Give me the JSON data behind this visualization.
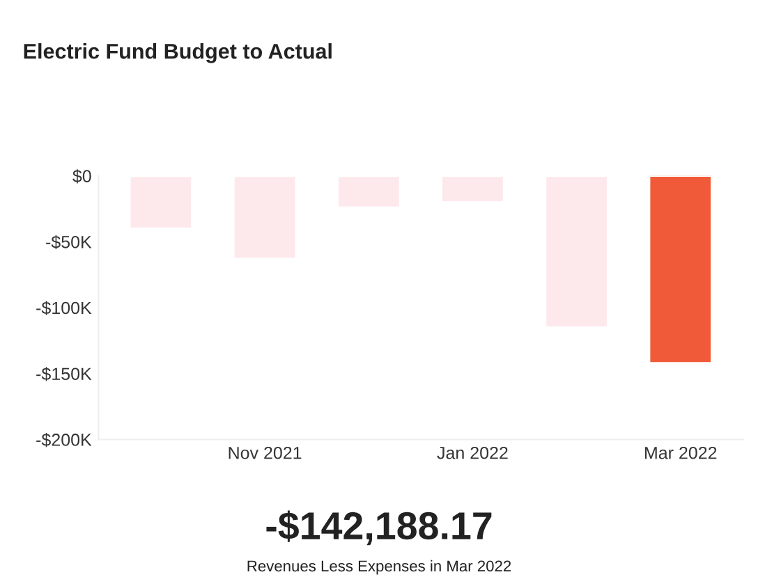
{
  "chart_data": {
    "type": "bar",
    "title": "Electric Fund Budget to Actual",
    "categories": [
      null,
      "Nov 2021",
      null,
      "Jan 2022",
      null,
      "Mar 2022"
    ],
    "values": [
      -40000,
      -63000,
      -24000,
      -20000,
      -115000,
      -142000
    ],
    "colors": [
      "#fde9ec",
      "#fde9ec",
      "#fde9ec",
      "#fde9ec",
      "#fde9ec",
      "#f05a38"
    ],
    "ylim": [
      -200000,
      0
    ],
    "yticks": [
      {
        "value": 0,
        "label": "$0"
      },
      {
        "value": -50000,
        "label": "-$50K"
      },
      {
        "value": -100000,
        "label": "-$100K"
      },
      {
        "value": -150000,
        "label": "-$150K"
      },
      {
        "value": -200000,
        "label": "-$200K"
      }
    ],
    "grid": false,
    "annotations": [
      "-$142,188.17",
      "Revenues Less Expenses in Mar 2022"
    ]
  }
}
